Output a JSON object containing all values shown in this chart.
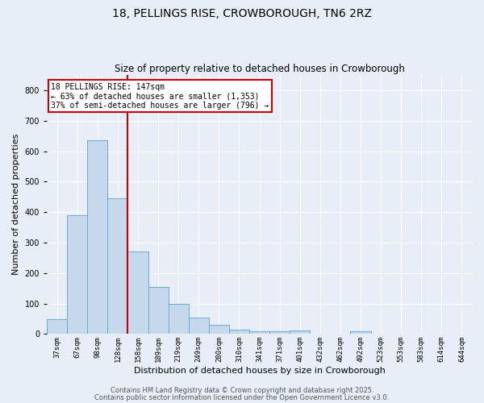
{
  "title": "18, PELLINGS RISE, CROWBOROUGH, TN6 2RZ",
  "subtitle": "Size of property relative to detached houses in Crowborough",
  "xlabel": "Distribution of detached houses by size in Crowborough",
  "ylabel": "Number of detached properties",
  "bar_color": "#c5d8ec",
  "bar_edge_color": "#6aaad4",
  "background_color": "#e8eef7",
  "grid_color": "#ffffff",
  "categories": [
    "37sqm",
    "67sqm",
    "98sqm",
    "128sqm",
    "158sqm",
    "189sqm",
    "219sqm",
    "249sqm",
    "280sqm",
    "310sqm",
    "341sqm",
    "371sqm",
    "401sqm",
    "432sqm",
    "462sqm",
    "492sqm",
    "523sqm",
    "553sqm",
    "583sqm",
    "614sqm",
    "644sqm"
  ],
  "values": [
    50,
    390,
    635,
    445,
    270,
    155,
    100,
    55,
    30,
    15,
    10,
    8,
    12,
    0,
    0,
    8,
    0,
    0,
    0,
    0,
    0
  ],
  "ylim": [
    0,
    850
  ],
  "yticks": [
    0,
    100,
    200,
    300,
    400,
    500,
    600,
    700,
    800
  ],
  "vline_position": 4,
  "vline_color": "#cc0000",
  "annotation_text": "18 PELLINGS RISE: 147sqm\n← 63% of detached houses are smaller (1,353)\n37% of semi-detached houses are larger (796) →",
  "annotation_box_color": "#ffffff",
  "annotation_box_edge_color": "#cc0000",
  "footer_line1": "Contains HM Land Registry data © Crown copyright and database right 2025.",
  "footer_line2": "Contains public sector information licensed under the Open Government Licence v3.0.",
  "title_fontsize": 10,
  "subtitle_fontsize": 8.5,
  "tick_fontsize": 6.5,
  "label_fontsize": 8,
  "annotation_fontsize": 7,
  "footer_fontsize": 6
}
